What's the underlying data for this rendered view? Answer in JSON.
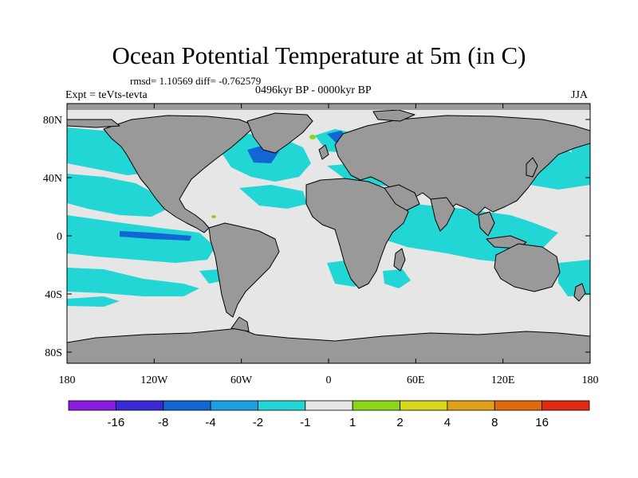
{
  "title": "Ocean Potential Temperature at 5m (in C)",
  "stats": "rmsd= 1.10569 diff= -0.762579",
  "period": "0496kyr BP - 0000kyr BP",
  "expt": "Expt = teVts-tevta",
  "season": "JJA",
  "axes": {
    "lat_labels": [
      "80N",
      "40N",
      "0",
      "40S",
      "80S"
    ],
    "lon_labels": [
      "180",
      "120W",
      "60W",
      "0",
      "60E",
      "120E",
      "180"
    ]
  },
  "colorbar": {
    "labels": [
      "-16",
      "-8",
      "-4",
      "-2",
      "-1",
      "1",
      "2",
      "4",
      "8",
      "16"
    ],
    "colors": [
      "#8a1de0",
      "#3a2ad6",
      "#1266d4",
      "#1aa0e0",
      "#22d6d6",
      "#e6e6e6",
      "#8cd61a",
      "#d6d61a",
      "#e0a01a",
      "#e06a10",
      "#e02a10"
    ]
  },
  "colors": {
    "land": "#999999",
    "background": "#e6e6e6",
    "coastline": "#000000"
  }
}
